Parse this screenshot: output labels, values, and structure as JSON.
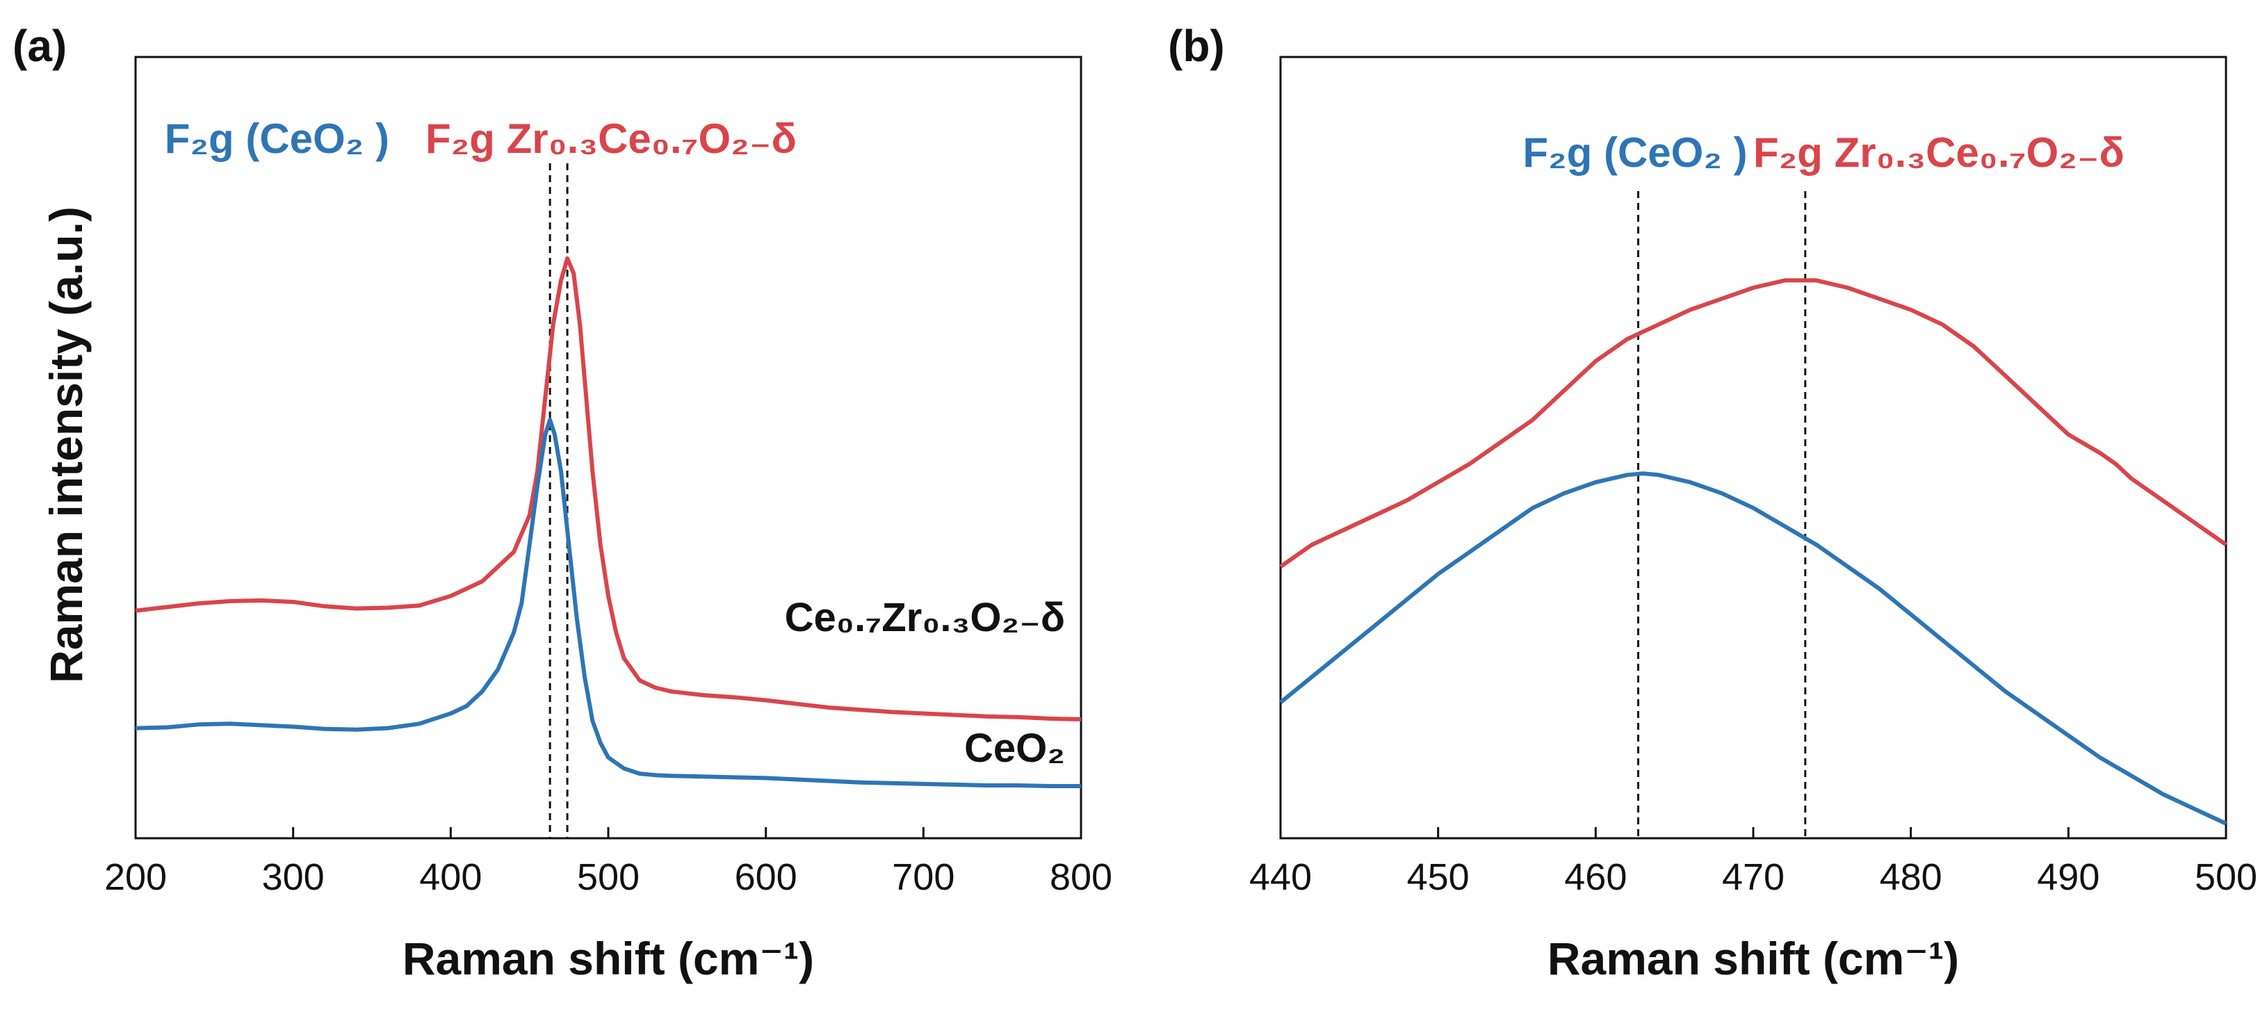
{
  "colors": {
    "ceo2": "#2E75B6",
    "zr": "#D9454A",
    "axis": "#111111",
    "marker": "#111111"
  },
  "chart_data": [
    {
      "panel": "(a)",
      "type": "line",
      "xlabel": "Raman shift (cm⁻¹)",
      "ylabel": "Raman intensity (a.u.)",
      "xlim": [
        200,
        800
      ],
      "ylim": [
        0,
        1
      ],
      "xticks": [
        "200",
        "300",
        "400",
        "500",
        "600",
        "700",
        "800"
      ],
      "yticks": [],
      "grid": false,
      "markers": [
        463,
        474
      ],
      "annotations": {
        "ceo2_peak": "F₂g (CeO₂ )",
        "zr_peak": "F₂g Zr₀.₃Ce₀.₇O₂₋δ"
      },
      "series": [
        {
          "name": "Ce0.7Zr0.3O2-δ",
          "label": "Ce₀.₇Zr₀.₃O₂₋δ",
          "color": "#D9454A",
          "x": [
            200,
            220,
            240,
            260,
            280,
            300,
            320,
            340,
            360,
            380,
            400,
            410,
            420,
            430,
            440,
            450,
            455,
            460,
            465,
            470,
            474,
            478,
            482,
            486,
            490,
            495,
            500,
            505,
            510,
            520,
            530,
            540,
            560,
            580,
            600,
            620,
            640,
            660,
            680,
            700,
            720,
            740,
            760,
            780,
            800
          ],
          "values": [
            0.31,
            0.315,
            0.32,
            0.323,
            0.324,
            0.322,
            0.316,
            0.313,
            0.314,
            0.317,
            0.33,
            0.34,
            0.35,
            0.37,
            0.39,
            0.44,
            0.5,
            0.6,
            0.7,
            0.76,
            0.79,
            0.77,
            0.7,
            0.6,
            0.5,
            0.4,
            0.33,
            0.28,
            0.245,
            0.215,
            0.205,
            0.2,
            0.195,
            0.192,
            0.188,
            0.183,
            0.178,
            0.175,
            0.172,
            0.17,
            0.168,
            0.166,
            0.165,
            0.163,
            0.162
          ]
        },
        {
          "name": "CeO2",
          "label": "CeO₂",
          "color": "#2E75B6",
          "x": [
            200,
            220,
            240,
            260,
            280,
            300,
            320,
            340,
            360,
            380,
            400,
            410,
            420,
            430,
            440,
            445,
            450,
            455,
            460,
            463,
            466,
            470,
            475,
            480,
            485,
            490,
            495,
            500,
            510,
            520,
            530,
            540,
            560,
            580,
            600,
            620,
            640,
            660,
            680,
            700,
            720,
            740,
            760,
            780,
            800
          ],
          "values": [
            0.15,
            0.151,
            0.155,
            0.156,
            0.154,
            0.152,
            0.149,
            0.148,
            0.15,
            0.156,
            0.17,
            0.18,
            0.2,
            0.23,
            0.28,
            0.32,
            0.4,
            0.48,
            0.55,
            0.57,
            0.55,
            0.5,
            0.4,
            0.3,
            0.22,
            0.16,
            0.13,
            0.11,
            0.095,
            0.088,
            0.086,
            0.085,
            0.084,
            0.083,
            0.082,
            0.08,
            0.078,
            0.076,
            0.075,
            0.074,
            0.073,
            0.072,
            0.072,
            0.071,
            0.071
          ]
        }
      ]
    },
    {
      "panel": "(b)",
      "type": "line",
      "xlabel": "Raman shift (cm⁻¹)",
      "xlim": [
        440,
        500
      ],
      "ylim": [
        0,
        1
      ],
      "xticks": [
        "440",
        "450",
        "460",
        "470",
        "480",
        "490",
        "500"
      ],
      "yticks": [],
      "grid": false,
      "markers": [
        462.7,
        473.3
      ],
      "annotations": {
        "ceo2_peak": "F₂g (CeO₂ )",
        "zr_peak": "F₂g Zr₀.₃Ce₀.₇O₂₋δ"
      },
      "series": [
        {
          "name": "Ce0.7Zr0.3O2-δ",
          "color": "#D9454A",
          "x": [
            440,
            442,
            444,
            446,
            448,
            450,
            452,
            454,
            456,
            458,
            460,
            462,
            464,
            466,
            468,
            470,
            472,
            473,
            474,
            476,
            478,
            480,
            482,
            484,
            486,
            488,
            490,
            492,
            493,
            494,
            496,
            498,
            500
          ],
          "values": [
            0.37,
            0.4,
            0.42,
            0.44,
            0.46,
            0.485,
            0.51,
            0.54,
            0.57,
            0.61,
            0.65,
            0.68,
            0.7,
            0.72,
            0.735,
            0.75,
            0.76,
            0.76,
            0.76,
            0.75,
            0.735,
            0.72,
            0.7,
            0.67,
            0.63,
            0.59,
            0.55,
            0.525,
            0.51,
            0.49,
            0.46,
            0.43,
            0.4
          ]
        },
        {
          "name": "CeO2",
          "color": "#2E75B6",
          "x": [
            440,
            442,
            444,
            446,
            448,
            450,
            452,
            454,
            456,
            458,
            460,
            462,
            463,
            464,
            466,
            468,
            470,
            472,
            474,
            476,
            478,
            480,
            482,
            484,
            486,
            488,
            490,
            492,
            494,
            496,
            498,
            500
          ],
          "values": [
            0.185,
            0.22,
            0.255,
            0.29,
            0.325,
            0.36,
            0.39,
            0.42,
            0.45,
            0.47,
            0.485,
            0.495,
            0.497,
            0.495,
            0.485,
            0.47,
            0.45,
            0.425,
            0.4,
            0.37,
            0.34,
            0.305,
            0.27,
            0.235,
            0.2,
            0.17,
            0.14,
            0.11,
            0.085,
            0.06,
            0.04,
            0.02
          ]
        }
      ]
    }
  ]
}
